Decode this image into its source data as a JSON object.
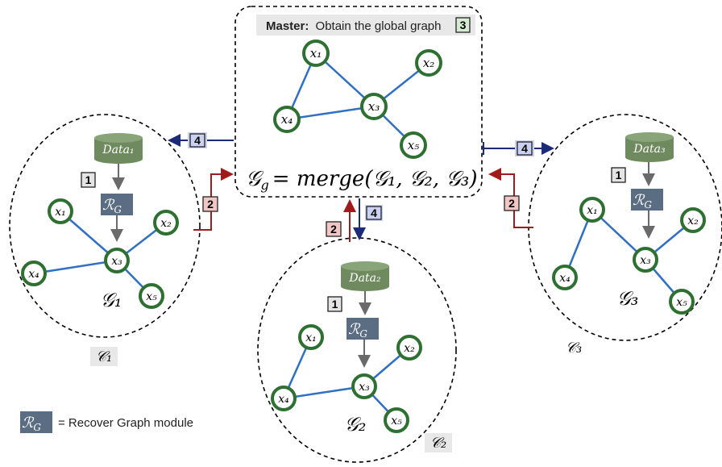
{
  "colors": {
    "edge": "#2f6fc4",
    "node_border": "#2e7031",
    "db_fill": "#6e8a5e",
    "module_fill": "#5b6d82",
    "step1": "#e4e4e4",
    "step2": "#f3c6c6",
    "step3": "#d4ecd0",
    "step4": "#cbd2f1",
    "upload_arrow": "#a01c1c",
    "download_arrow": "#1c2a7a"
  },
  "master": {
    "title_bold": "Master:",
    "title_rest": "Obtain the global graph",
    "step": "3",
    "formula_lhs": "𝒢",
    "formula_sub": "g",
    "formula_rhs": "= merge(𝒢₁, 𝒢₂, 𝒢₃)",
    "nodes": {
      "x1": "x₁",
      "x2": "x₂",
      "x3": "x₃",
      "x4": "x₄",
      "x5": "x₅"
    }
  },
  "clients": [
    {
      "data_label": "Data₁",
      "step_local": "1",
      "step_upload": "2",
      "step_download": "4",
      "module": "ℛ",
      "module_sub": "G",
      "graph_label": "𝒢₁",
      "client_label": "𝒞₁",
      "nodes": {
        "x1": "x₁",
        "x2": "x₂",
        "x3": "x₃",
        "x4": "x₄",
        "x5": "x₅"
      }
    },
    {
      "data_label": "Data₂",
      "step_local": "1",
      "step_upload": "2",
      "step_download": "4",
      "module": "ℛ",
      "module_sub": "G",
      "graph_label": "𝒢₂",
      "client_label": "𝒞₂",
      "nodes": {
        "x1": "x₁",
        "x2": "x₂",
        "x3": "x₃",
        "x4": "x₄",
        "x5": "x₅"
      }
    },
    {
      "data_label": "Data₃",
      "step_local": "1",
      "step_upload": "2",
      "step_download": "4",
      "module": "ℛ",
      "module_sub": "G",
      "graph_label": "𝒢₃",
      "client_label": "𝒞₃",
      "nodes": {
        "x1": "x₁",
        "x2": "x₂",
        "x3": "x₃",
        "x4": "x₄",
        "x5": "x₅"
      }
    }
  ],
  "legend": {
    "module": "ℛ",
    "module_sub": "G",
    "text": "= Recover Graph module"
  }
}
